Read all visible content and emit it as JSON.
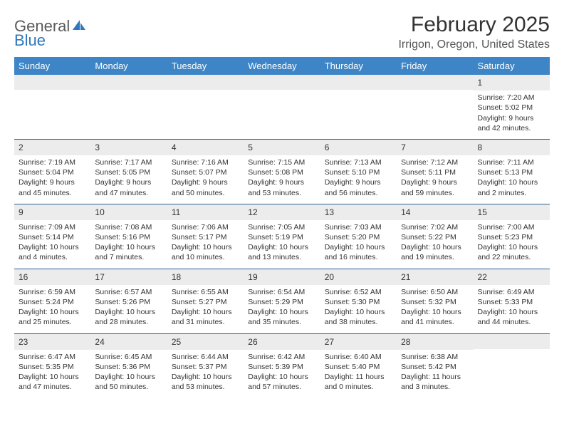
{
  "logo": {
    "word1": "General",
    "word2": "Blue"
  },
  "title": "February 2025",
  "subtitle": "Irrigon, Oregon, United States",
  "colors": {
    "header_bg": "#3d85c6",
    "header_text": "#ffffff",
    "daynum_bg": "#ececec",
    "row_border": "#2f5f8f",
    "logo_gray": "#5a5a5a",
    "logo_blue": "#2f77bb"
  },
  "weekdays": [
    "Sunday",
    "Monday",
    "Tuesday",
    "Wednesday",
    "Thursday",
    "Friday",
    "Saturday"
  ],
  "weeks": [
    [
      null,
      null,
      null,
      null,
      null,
      null,
      {
        "n": "1",
        "sr": "Sunrise: 7:20 AM",
        "ss": "Sunset: 5:02 PM",
        "d1": "Daylight: 9 hours",
        "d2": "and 42 minutes."
      }
    ],
    [
      {
        "n": "2",
        "sr": "Sunrise: 7:19 AM",
        "ss": "Sunset: 5:04 PM",
        "d1": "Daylight: 9 hours",
        "d2": "and 45 minutes."
      },
      {
        "n": "3",
        "sr": "Sunrise: 7:17 AM",
        "ss": "Sunset: 5:05 PM",
        "d1": "Daylight: 9 hours",
        "d2": "and 47 minutes."
      },
      {
        "n": "4",
        "sr": "Sunrise: 7:16 AM",
        "ss": "Sunset: 5:07 PM",
        "d1": "Daylight: 9 hours",
        "d2": "and 50 minutes."
      },
      {
        "n": "5",
        "sr": "Sunrise: 7:15 AM",
        "ss": "Sunset: 5:08 PM",
        "d1": "Daylight: 9 hours",
        "d2": "and 53 minutes."
      },
      {
        "n": "6",
        "sr": "Sunrise: 7:13 AM",
        "ss": "Sunset: 5:10 PM",
        "d1": "Daylight: 9 hours",
        "d2": "and 56 minutes."
      },
      {
        "n": "7",
        "sr": "Sunrise: 7:12 AM",
        "ss": "Sunset: 5:11 PM",
        "d1": "Daylight: 9 hours",
        "d2": "and 59 minutes."
      },
      {
        "n": "8",
        "sr": "Sunrise: 7:11 AM",
        "ss": "Sunset: 5:13 PM",
        "d1": "Daylight: 10 hours",
        "d2": "and 2 minutes."
      }
    ],
    [
      {
        "n": "9",
        "sr": "Sunrise: 7:09 AM",
        "ss": "Sunset: 5:14 PM",
        "d1": "Daylight: 10 hours",
        "d2": "and 4 minutes."
      },
      {
        "n": "10",
        "sr": "Sunrise: 7:08 AM",
        "ss": "Sunset: 5:16 PM",
        "d1": "Daylight: 10 hours",
        "d2": "and 7 minutes."
      },
      {
        "n": "11",
        "sr": "Sunrise: 7:06 AM",
        "ss": "Sunset: 5:17 PM",
        "d1": "Daylight: 10 hours",
        "d2": "and 10 minutes."
      },
      {
        "n": "12",
        "sr": "Sunrise: 7:05 AM",
        "ss": "Sunset: 5:19 PM",
        "d1": "Daylight: 10 hours",
        "d2": "and 13 minutes."
      },
      {
        "n": "13",
        "sr": "Sunrise: 7:03 AM",
        "ss": "Sunset: 5:20 PM",
        "d1": "Daylight: 10 hours",
        "d2": "and 16 minutes."
      },
      {
        "n": "14",
        "sr": "Sunrise: 7:02 AM",
        "ss": "Sunset: 5:22 PM",
        "d1": "Daylight: 10 hours",
        "d2": "and 19 minutes."
      },
      {
        "n": "15",
        "sr": "Sunrise: 7:00 AM",
        "ss": "Sunset: 5:23 PM",
        "d1": "Daylight: 10 hours",
        "d2": "and 22 minutes."
      }
    ],
    [
      {
        "n": "16",
        "sr": "Sunrise: 6:59 AM",
        "ss": "Sunset: 5:24 PM",
        "d1": "Daylight: 10 hours",
        "d2": "and 25 minutes."
      },
      {
        "n": "17",
        "sr": "Sunrise: 6:57 AM",
        "ss": "Sunset: 5:26 PM",
        "d1": "Daylight: 10 hours",
        "d2": "and 28 minutes."
      },
      {
        "n": "18",
        "sr": "Sunrise: 6:55 AM",
        "ss": "Sunset: 5:27 PM",
        "d1": "Daylight: 10 hours",
        "d2": "and 31 minutes."
      },
      {
        "n": "19",
        "sr": "Sunrise: 6:54 AM",
        "ss": "Sunset: 5:29 PM",
        "d1": "Daylight: 10 hours",
        "d2": "and 35 minutes."
      },
      {
        "n": "20",
        "sr": "Sunrise: 6:52 AM",
        "ss": "Sunset: 5:30 PM",
        "d1": "Daylight: 10 hours",
        "d2": "and 38 minutes."
      },
      {
        "n": "21",
        "sr": "Sunrise: 6:50 AM",
        "ss": "Sunset: 5:32 PM",
        "d1": "Daylight: 10 hours",
        "d2": "and 41 minutes."
      },
      {
        "n": "22",
        "sr": "Sunrise: 6:49 AM",
        "ss": "Sunset: 5:33 PM",
        "d1": "Daylight: 10 hours",
        "d2": "and 44 minutes."
      }
    ],
    [
      {
        "n": "23",
        "sr": "Sunrise: 6:47 AM",
        "ss": "Sunset: 5:35 PM",
        "d1": "Daylight: 10 hours",
        "d2": "and 47 minutes."
      },
      {
        "n": "24",
        "sr": "Sunrise: 6:45 AM",
        "ss": "Sunset: 5:36 PM",
        "d1": "Daylight: 10 hours",
        "d2": "and 50 minutes."
      },
      {
        "n": "25",
        "sr": "Sunrise: 6:44 AM",
        "ss": "Sunset: 5:37 PM",
        "d1": "Daylight: 10 hours",
        "d2": "and 53 minutes."
      },
      {
        "n": "26",
        "sr": "Sunrise: 6:42 AM",
        "ss": "Sunset: 5:39 PM",
        "d1": "Daylight: 10 hours",
        "d2": "and 57 minutes."
      },
      {
        "n": "27",
        "sr": "Sunrise: 6:40 AM",
        "ss": "Sunset: 5:40 PM",
        "d1": "Daylight: 11 hours",
        "d2": "and 0 minutes."
      },
      {
        "n": "28",
        "sr": "Sunrise: 6:38 AM",
        "ss": "Sunset: 5:42 PM",
        "d1": "Daylight: 11 hours",
        "d2": "and 3 minutes."
      },
      null
    ]
  ]
}
